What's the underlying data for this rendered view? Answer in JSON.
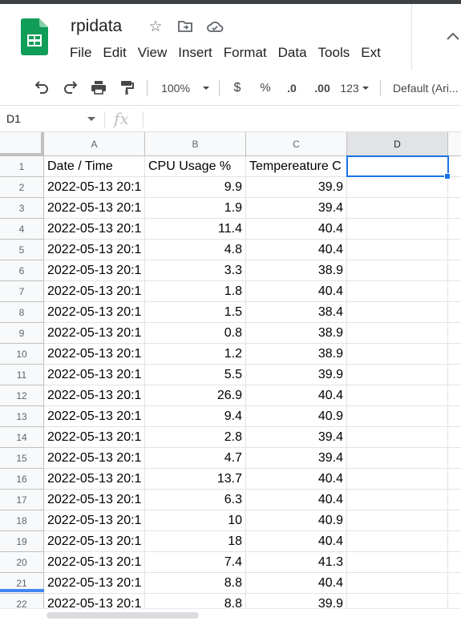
{
  "doc": {
    "title": "rpidata"
  },
  "menu": [
    "File",
    "Edit",
    "View",
    "Insert",
    "Format",
    "Data",
    "Tools",
    "Ext"
  ],
  "toolbar": {
    "zoom": "100%",
    "currency": "$",
    "percent": "%",
    "decrease_decimal": ".0",
    "increase_decimal": ".00",
    "number_format": "123",
    "font": "Default (Ari..."
  },
  "formula_bar": {
    "cell_ref": "D1",
    "fx": "fx",
    "value": ""
  },
  "columns": [
    "A",
    "B",
    "C",
    "D"
  ],
  "headers": [
    "Date / Time",
    "CPU Usage %",
    "Tempereature C"
  ],
  "rows": [
    {
      "n": "1"
    },
    {
      "n": "2",
      "a": "2022-05-13 20:1",
      "b": "9.9",
      "c": "39.9"
    },
    {
      "n": "3",
      "a": "2022-05-13 20:1",
      "b": "1.9",
      "c": "39.4"
    },
    {
      "n": "4",
      "a": "2022-05-13 20:1",
      "b": "11.4",
      "c": "40.4"
    },
    {
      "n": "5",
      "a": "2022-05-13 20:1",
      "b": "4.8",
      "c": "40.4"
    },
    {
      "n": "6",
      "a": "2022-05-13 20:1",
      "b": "3.3",
      "c": "38.9"
    },
    {
      "n": "7",
      "a": "2022-05-13 20:1",
      "b": "1.8",
      "c": "40.4"
    },
    {
      "n": "8",
      "a": "2022-05-13 20:1",
      "b": "1.5",
      "c": "38.4"
    },
    {
      "n": "9",
      "a": "2022-05-13 20:1",
      "b": "0.8",
      "c": "38.9"
    },
    {
      "n": "10",
      "a": "2022-05-13 20:1",
      "b": "1.2",
      "c": "38.9"
    },
    {
      "n": "11",
      "a": "2022-05-13 20:1",
      "b": "5.5",
      "c": "39.9"
    },
    {
      "n": "12",
      "a": "2022-05-13 20:1",
      "b": "26.9",
      "c": "40.4"
    },
    {
      "n": "13",
      "a": "2022-05-13 20:1",
      "b": "9.4",
      "c": "40.9"
    },
    {
      "n": "14",
      "a": "2022-05-13 20:1",
      "b": "2.8",
      "c": "39.4"
    },
    {
      "n": "15",
      "a": "2022-05-13 20:1",
      "b": "4.7",
      "c": "39.4"
    },
    {
      "n": "16",
      "a": "2022-05-13 20:1",
      "b": "13.7",
      "c": "40.4"
    },
    {
      "n": "17",
      "a": "2022-05-13 20:1",
      "b": "6.3",
      "c": "40.4"
    },
    {
      "n": "18",
      "a": "2022-05-13 20:1",
      "b": "10",
      "c": "40.9"
    },
    {
      "n": "19",
      "a": "2022-05-13 20:1",
      "b": "18",
      "c": "40.4"
    },
    {
      "n": "20",
      "a": "2022-05-13 20:1",
      "b": "7.4",
      "c": "41.3"
    },
    {
      "n": "21",
      "a": "2022-05-13 20:1",
      "b": "8.8",
      "c": "40.4"
    },
    {
      "n": "22",
      "a": "2022-05-13 20:1",
      "b": "8.8",
      "c": "39.9"
    }
  ],
  "colors": {
    "accent": "#1a73e8",
    "sheets_green": "#0f9d58"
  },
  "icons": [
    "star-icon",
    "move-to-folder-icon",
    "cloud-saved-icon",
    "undo-icon",
    "redo-icon",
    "print-icon",
    "paint-format-icon",
    "collapse-menu-icon"
  ]
}
